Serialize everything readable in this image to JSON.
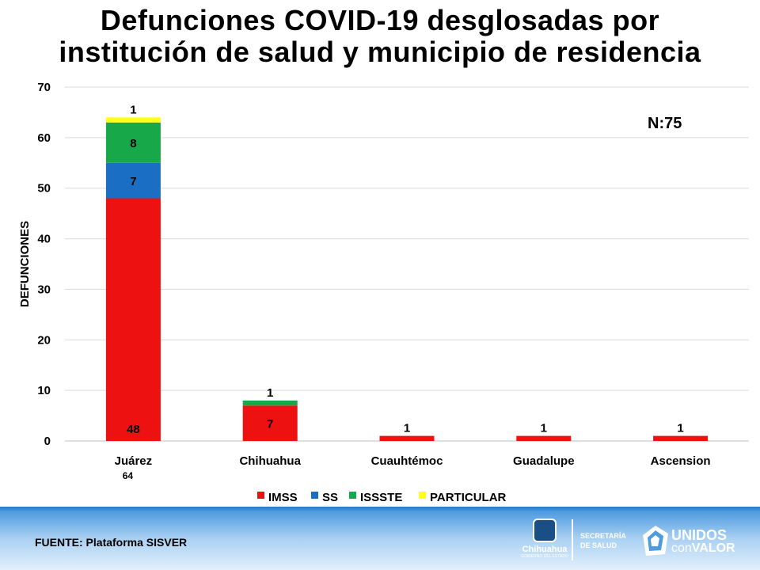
{
  "title_line1": "Defunciones COVID-19 desglosadas por",
  "title_line2": "institución de salud y municipio de residencia",
  "annotation_n": "N:75",
  "source": "FUENTE: Plataforma SISVER",
  "logos": {
    "chihuahua_name": "Chihuahua",
    "chihuahua_sub": "GOBIERNO DEL ESTADO",
    "secretaria_line1": "SECRETARÍA",
    "secretaria_line2": "DE SALUD",
    "unidos_line1": "UNIDOS",
    "unidos_line2a": "con",
    "unidos_line2b": "VALOR"
  },
  "chart_data": {
    "type": "bar",
    "stacked": true,
    "title": "Defunciones COVID-19 desglosadas por institución de salud y municipio de residencia",
    "ylabel": "DEFUNCIONES",
    "xlabel": "",
    "ylim": [
      0,
      70
    ],
    "yticks": [
      0,
      10,
      20,
      30,
      40,
      50,
      60,
      70
    ],
    "grid": true,
    "legend_position": "bottom",
    "categories": [
      "Juárez",
      "Chihuahua",
      "Cuauhtémoc",
      "Guadalupe",
      "Ascension"
    ],
    "category_totals": [
      "64",
      "",
      "",
      "",
      ""
    ],
    "series": [
      {
        "name": "IMSS",
        "color": "#ee1111",
        "values": [
          48,
          7,
          1,
          1,
          1
        ]
      },
      {
        "name": "SS",
        "color": "#1a6fc4",
        "values": [
          7,
          0,
          0,
          0,
          0
        ]
      },
      {
        "name": "ISSSTE",
        "color": "#17a84a",
        "values": [
          8,
          1,
          0,
          0,
          0
        ]
      },
      {
        "name": "PARTICULAR",
        "color": "#ffff1a",
        "values": [
          1,
          0,
          0,
          0,
          0
        ]
      }
    ]
  }
}
